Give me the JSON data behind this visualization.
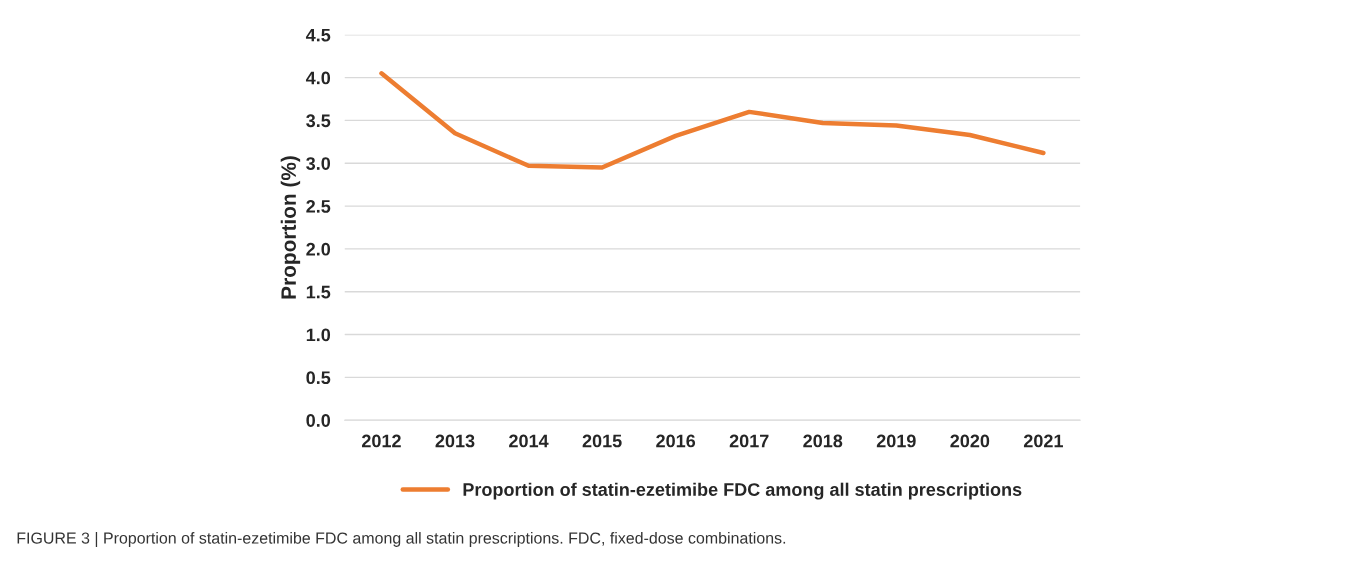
{
  "chart_data": {
    "type": "line",
    "ylabel": "Proportion (%)",
    "categories": [
      "2012",
      "2013",
      "2014",
      "2015",
      "2016",
      "2017",
      "2018",
      "2019",
      "2020",
      "2021"
    ],
    "series": [
      {
        "name": "Proportion of statin-ezetimibe FDC among all statin prescriptions",
        "color": "#ed7d31",
        "values": [
          4.05,
          3.35,
          2.97,
          2.95,
          3.32,
          3.6,
          3.47,
          3.44,
          3.33,
          3.12
        ]
      }
    ],
    "ylim": [
      0,
      4.5
    ],
    "yticks": [
      {
        "value": 0,
        "label": "0.0"
      },
      {
        "value": 0.5,
        "label": "0.5"
      },
      {
        "value": 1,
        "label": "1.0"
      },
      {
        "value": 1.5,
        "label": "1.5"
      },
      {
        "value": 2,
        "label": "2.0"
      },
      {
        "value": 2.5,
        "label": "2.5"
      },
      {
        "value": 3,
        "label": "3.0"
      },
      {
        "value": 3.5,
        "label": "3.5"
      },
      {
        "value": 4,
        "label": "4.0"
      },
      {
        "value": 4.5,
        "label": "4.5"
      }
    ],
    "grid": "y",
    "legend": "bottom",
    "marker": "none",
    "line_style": "solid",
    "annotations": [
      "FIGURE 3 | Proportion of statin-ezetimibe FDC among all statin prescriptions. FDC, fixed-dose combinations."
    ]
  }
}
